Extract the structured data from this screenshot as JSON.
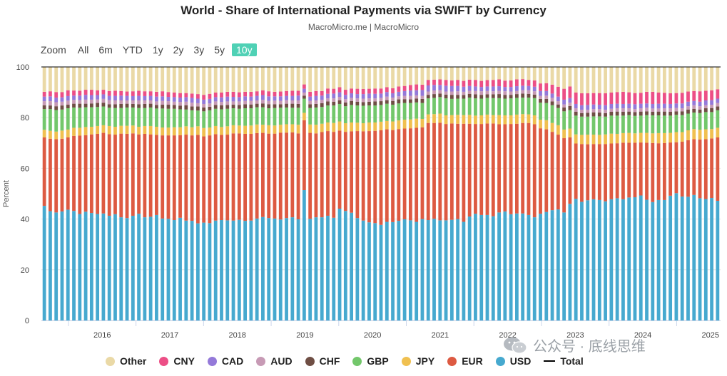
{
  "header": {
    "title": "World - Share of International Payments via SWIFT by Currency",
    "subtitle": "MacroMicro.me | MacroMicro"
  },
  "zoom": {
    "label": "Zoom",
    "options": [
      "All",
      "6m",
      "YTD",
      "1y",
      "2y",
      "3y",
      "5y",
      "10y"
    ],
    "active": "10y"
  },
  "watermark": {
    "text": "公众号 · 底线思维"
  },
  "chart_data": {
    "type": "bar",
    "stacked": true,
    "title": "World - Share of International Payments via SWIFT by Currency",
    "ylabel": "Percent",
    "xlabel": "",
    "ylim": [
      0,
      100
    ],
    "yticks": [
      0,
      20,
      40,
      60,
      80,
      100
    ],
    "xticks": [
      "2016",
      "2017",
      "2018",
      "2019",
      "2020",
      "2021",
      "2022",
      "2023",
      "2024",
      "2025"
    ],
    "x_start_year": 2015.6,
    "x_end_year": 2025.65,
    "legend": [
      "Other",
      "CNY",
      "CAD",
      "AUD",
      "CHF",
      "GBP",
      "JPY",
      "EUR",
      "USD",
      "Total"
    ],
    "colors": {
      "USD": "#46a9cf",
      "EUR": "#dd5a42",
      "JPY": "#f0c050",
      "GBP": "#73c76b",
      "CHF": "#6f4e44",
      "AUD": "#c79ab5",
      "CAD": "#9479d9",
      "CNY": "#ec4f86",
      "Other": "#ead9a6",
      "Total": "#000000"
    },
    "total": 100,
    "series": [
      {
        "name": "USD",
        "values": [
          45.2,
          43.1,
          42.6,
          43.0,
          43.7,
          43.2,
          42.0,
          42.9,
          42.4,
          42.0,
          42.2,
          41.3,
          41.9,
          40.7,
          40.4,
          41.3,
          42.1,
          40.7,
          40.9,
          41.6,
          40.2,
          40.1,
          39.6,
          40.5,
          39.4,
          39.3,
          38.3,
          38.6,
          38.4,
          39.4,
          39.6,
          39.5,
          39.4,
          39.7,
          39.3,
          39.4,
          40.2,
          40.8,
          40.4,
          40.2,
          39.8,
          40.4,
          40.7,
          39.9,
          51.4,
          40.1,
          40.7,
          40.7,
          41.3,
          40.5,
          44.1,
          43.2,
          42.5,
          40.4,
          39.4,
          38.7,
          38.4,
          37.7,
          38.9,
          38.8,
          39.3,
          39.9,
          39.5,
          38.9,
          40.0,
          39.6,
          40.1,
          39.5,
          39.5,
          39.7,
          40.0,
          38.9,
          41.0,
          42.1,
          41.6,
          41.6,
          41.1,
          42.6,
          43.0,
          41.9,
          42.2,
          42.2,
          41.6,
          40.7,
          42.1,
          42.8,
          43.5,
          43.8,
          42.6,
          46.0,
          48.0,
          46.8,
          47.4,
          47.8,
          47.5,
          47.0,
          47.8,
          48.2,
          47.8,
          48.5,
          48.6,
          49.3,
          47.6,
          46.7,
          47.5,
          47.5,
          49.2,
          50.2,
          48.9,
          48.8,
          49.5,
          48.2,
          47.9,
          48.3,
          47.2
        ]
      },
      {
        "name": "EUR",
        "values": [
          27.0,
          28.6,
          28.9,
          28.7,
          28.5,
          29.6,
          30.9,
          30.2,
          31.0,
          31.6,
          31.8,
          32.2,
          31.4,
          33.0,
          33.2,
          32.5,
          31.3,
          32.9,
          32.5,
          31.6,
          32.8,
          32.9,
          33.4,
          32.6,
          33.9,
          33.7,
          34.9,
          34.0,
          34.6,
          34.1,
          33.6,
          33.8,
          34.4,
          34.1,
          34.3,
          34.2,
          33.7,
          33.2,
          33.3,
          33.5,
          34.3,
          33.7,
          33.5,
          33.9,
          27.6,
          33.9,
          33.1,
          33.6,
          33.4,
          33.9,
          30.8,
          31.2,
          32.1,
          34.3,
          35.2,
          36.0,
          36.4,
          37.3,
          36.5,
          36.3,
          36.2,
          35.8,
          36.3,
          37.1,
          36.2,
          38.3,
          37.8,
          38.5,
          38.0,
          38.0,
          37.6,
          38.7,
          36.6,
          35.4,
          35.9,
          36.1,
          36.6,
          34.8,
          34.4,
          35.6,
          35.4,
          35.7,
          36.3,
          36.7,
          33.7,
          32.6,
          30.9,
          29.5,
          29.3,
          26.2,
          21.8,
          22.8,
          22.1,
          21.8,
          22.1,
          22.6,
          22.0,
          21.7,
          22.3,
          21.6,
          21.5,
          20.9,
          22.5,
          23.3,
          22.4,
          22.5,
          21.0,
          20.1,
          21.6,
          22.3,
          22.0,
          23.2,
          23.6,
          23.5,
          25.0
        ]
      },
      {
        "name": "JPY",
        "values": [
          3.0,
          3.1,
          3.0,
          3.2,
          3.1,
          3.2,
          3.1,
          3.2,
          3.0,
          3.1,
          3.0,
          3.2,
          3.1,
          3.1,
          3.2,
          3.1,
          3.0,
          3.1,
          3.3,
          3.2,
          3.1,
          3.1,
          3.2,
          3.1,
          3.3,
          3.2,
          3.4,
          3.3,
          3.1,
          3.2,
          3.1,
          3.3,
          3.2,
          3.1,
          3.2,
          3.3,
          3.4,
          3.2,
          3.3,
          3.2,
          3.1,
          3.3,
          3.2,
          3.4,
          2.9,
          3.3,
          3.4,
          3.3,
          3.4,
          3.5,
          3.6,
          3.4,
          3.5,
          3.3,
          3.2,
          3.4,
          3.3,
          3.4,
          3.3,
          3.4,
          3.4,
          3.5,
          3.5,
          3.6,
          3.3,
          3.4,
          3.5,
          3.6,
          3.4,
          3.3,
          3.5,
          3.4,
          3.5,
          3.3,
          3.4,
          3.5,
          3.3,
          3.6,
          3.5,
          3.4,
          3.6,
          3.5,
          3.4,
          3.5,
          3.4,
          3.6,
          3.5,
          3.7,
          3.4,
          3.5,
          3.6,
          3.6,
          3.8,
          3.7,
          3.6,
          3.8,
          3.9,
          3.7,
          3.8,
          3.9,
          3.7,
          3.8,
          3.9,
          3.8,
          4.0,
          3.9,
          3.8,
          4.0,
          3.8,
          3.9,
          4.0,
          3.8,
          3.9,
          3.7,
          3.8
        ]
      },
      {
        "name": "GBP",
        "values": [
          8.2,
          8.6,
          8.5,
          8.3,
          8.4,
          8.0,
          7.9,
          7.8,
          7.7,
          7.5,
          7.4,
          7.2,
          7.4,
          7.0,
          7.2,
          7.1,
          7.4,
          7.1,
          7.3,
          7.2,
          7.5,
          7.4,
          7.3,
          7.1,
          6.6,
          6.7,
          6.2,
          6.6,
          6.8,
          6.8,
          7.0,
          6.9,
          6.7,
          6.6,
          6.9,
          6.8,
          6.8,
          6.9,
          6.7,
          6.9,
          6.7,
          6.6,
          6.5,
          6.7,
          5.6,
          6.5,
          6.8,
          6.6,
          6.7,
          6.9,
          6.9,
          6.7,
          6.9,
          6.8,
          6.9,
          6.7,
          6.7,
          6.6,
          6.8,
          6.6,
          6.7,
          6.6,
          6.5,
          6.4,
          6.3,
          6.3,
          6.4,
          6.5,
          6.7,
          6.4,
          6.4,
          6.5,
          6.8,
          6.8,
          6.6,
          6.6,
          6.7,
          6.7,
          6.6,
          6.7,
          6.6,
          6.5,
          6.6,
          6.8,
          6.7,
          6.8,
          7.0,
          6.8,
          7.2,
          7.3,
          7.4,
          7.2,
          7.1,
          7.2,
          7.3,
          7.0,
          7.1,
          7.2,
          6.9,
          7.0,
          6.9,
          6.8,
          7.0,
          7.1,
          7.0,
          6.9,
          6.8,
          6.8,
          6.7,
          6.6,
          6.5,
          6.6,
          6.8,
          6.7,
          6.9
        ]
      },
      {
        "name": "CHF",
        "values": [
          1.5,
          1.4,
          1.5,
          1.6,
          1.4,
          1.5,
          1.6,
          1.4,
          1.5,
          1.6,
          1.5,
          1.4,
          1.5,
          1.6,
          1.5,
          1.4,
          1.5,
          1.6,
          1.5,
          1.4,
          1.5,
          1.6,
          1.5,
          1.4,
          1.7,
          1.5,
          1.6,
          1.5,
          1.4,
          1.5,
          1.6,
          1.5,
          1.4,
          1.5,
          1.6,
          1.5,
          1.4,
          1.5,
          1.6,
          1.5,
          1.4,
          1.5,
          1.6,
          1.5,
          1.2,
          1.5,
          1.4,
          1.5,
          1.6,
          1.5,
          1.4,
          1.5,
          1.6,
          1.5,
          1.4,
          1.5,
          1.6,
          1.5,
          1.4,
          1.5,
          1.6,
          1.5,
          1.4,
          1.5,
          1.6,
          1.4,
          1.5,
          1.4,
          1.5,
          1.6,
          1.5,
          1.4,
          1.5,
          1.6,
          1.5,
          1.4,
          1.5,
          1.6,
          1.5,
          1.4,
          1.5,
          1.6,
          1.5,
          1.4,
          1.5,
          1.6,
          1.5,
          1.4,
          1.5,
          1.6,
          1.5,
          1.4,
          1.5,
          1.6,
          1.5,
          1.4,
          1.5,
          1.6,
          1.5,
          1.4,
          1.5,
          1.6,
          1.5,
          1.4,
          1.5,
          1.6,
          1.5,
          1.4,
          1.5,
          1.6,
          1.5,
          1.4,
          1.5,
          1.6,
          1.5
        ]
      },
      {
        "name": "AUD",
        "values": [
          1.6,
          1.7,
          1.6,
          1.5,
          1.6,
          1.5,
          1.4,
          1.6,
          1.5,
          1.4,
          1.5,
          1.6,
          1.5,
          1.4,
          1.3,
          1.4,
          1.5,
          1.4,
          1.3,
          1.4,
          1.5,
          1.4,
          1.3,
          1.5,
          1.4,
          1.5,
          1.3,
          1.4,
          1.3,
          1.4,
          1.3,
          1.4,
          1.3,
          1.4,
          1.3,
          1.4,
          1.3,
          1.4,
          1.3,
          1.4,
          1.3,
          1.4,
          1.3,
          1.4,
          1.2,
          1.3,
          1.4,
          1.3,
          1.2,
          1.3,
          1.4,
          1.3,
          1.2,
          1.3,
          1.4,
          1.3,
          1.2,
          1.3,
          1.4,
          1.3,
          1.2,
          1.3,
          1.4,
          1.3,
          1.2,
          1.3,
          1.4,
          1.3,
          1.2,
          1.3,
          1.4,
          1.3,
          1.2,
          1.3,
          1.4,
          1.3,
          1.2,
          1.3,
          1.4,
          1.3,
          1.2,
          1.3,
          1.4,
          1.3,
          1.2,
          1.3,
          1.4,
          1.3,
          1.2,
          1.3,
          1.4,
          1.3,
          1.2,
          1.3,
          1.4,
          1.3,
          1.2,
          1.3,
          1.4,
          1.3,
          1.2,
          1.3,
          1.4,
          1.3,
          1.2,
          1.3,
          1.4,
          1.3,
          1.2,
          1.3,
          1.4,
          1.3,
          1.2,
          1.3,
          1.4
        ]
      },
      {
        "name": "CAD",
        "values": [
          1.8,
          1.9,
          1.8,
          1.7,
          1.8,
          1.7,
          1.8,
          1.9,
          1.8,
          1.7,
          1.8,
          1.7,
          1.8,
          1.9,
          1.8,
          1.7,
          1.8,
          1.7,
          1.8,
          1.9,
          1.8,
          1.7,
          1.8,
          1.7,
          1.8,
          1.9,
          1.8,
          1.7,
          1.8,
          1.7,
          1.8,
          1.9,
          1.8,
          1.7,
          1.8,
          1.7,
          1.8,
          1.9,
          1.8,
          1.7,
          1.8,
          1.7,
          1.8,
          1.9,
          1.5,
          1.7,
          1.8,
          1.7,
          1.8,
          1.9,
          1.8,
          1.7,
          1.8,
          1.7,
          1.8,
          1.9,
          1.8,
          1.7,
          1.8,
          1.7,
          1.8,
          1.9,
          2.1,
          2.0,
          2.3,
          2.4,
          2.2,
          2.1,
          2.3,
          2.2,
          2.1,
          2.0,
          1.9,
          1.8,
          1.7,
          1.8,
          1.9,
          1.8,
          1.7,
          1.8,
          1.9,
          1.8,
          1.7,
          1.8,
          1.9,
          1.8,
          1.7,
          1.8,
          1.9,
          1.8,
          1.7,
          1.8,
          1.9,
          1.8,
          1.7,
          1.8,
          1.9,
          1.8,
          1.7,
          1.8,
          1.9,
          1.8,
          1.7,
          1.8,
          1.9,
          1.8,
          1.7,
          1.8,
          1.9,
          1.8,
          1.7,
          1.8,
          1.9,
          1.8,
          1.7
        ]
      },
      {
        "name": "CNY",
        "values": [
          1.9,
          2.0,
          2.2,
          2.1,
          2.3,
          2.0,
          1.9,
          2.0,
          2.1,
          1.9,
          1.8,
          1.9,
          2.0,
          1.8,
          1.7,
          1.9,
          2.0,
          1.9,
          1.8,
          1.9,
          2.0,
          1.9,
          1.8,
          1.8,
          1.6,
          1.7,
          1.8,
          1.9,
          2.0,
          1.8,
          1.9,
          1.9,
          2.0,
          1.9,
          1.8,
          1.9,
          1.8,
          1.9,
          2.0,
          1.8,
          1.9,
          1.9,
          2.0,
          1.9,
          1.7,
          1.9,
          1.9,
          1.8,
          2.1,
          1.9,
          2.0,
          2.0,
          1.9,
          2.1,
          2.0,
          1.9,
          2.1,
          2.0,
          1.9,
          2.0,
          2.1,
          2.0,
          2.2,
          2.3,
          2.1,
          2.2,
          2.1,
          2.2,
          2.3,
          2.2,
          2.4,
          2.3,
          2.5,
          2.6,
          2.4,
          2.5,
          2.6,
          2.7,
          2.5,
          2.6,
          2.7,
          2.6,
          2.4,
          2.5,
          3.0,
          3.1,
          3.5,
          3.9,
          4.3,
          4.6,
          4.5,
          4.7,
          4.6,
          4.5,
          4.6,
          4.7,
          4.5,
          4.6,
          4.8,
          4.5,
          4.4,
          4.3,
          4.6,
          4.8,
          4.4,
          4.3,
          4.2,
          4.1,
          4.2,
          4.0,
          3.9,
          4.1,
          3.8,
          3.9,
          3.7
        ]
      }
    ]
  }
}
